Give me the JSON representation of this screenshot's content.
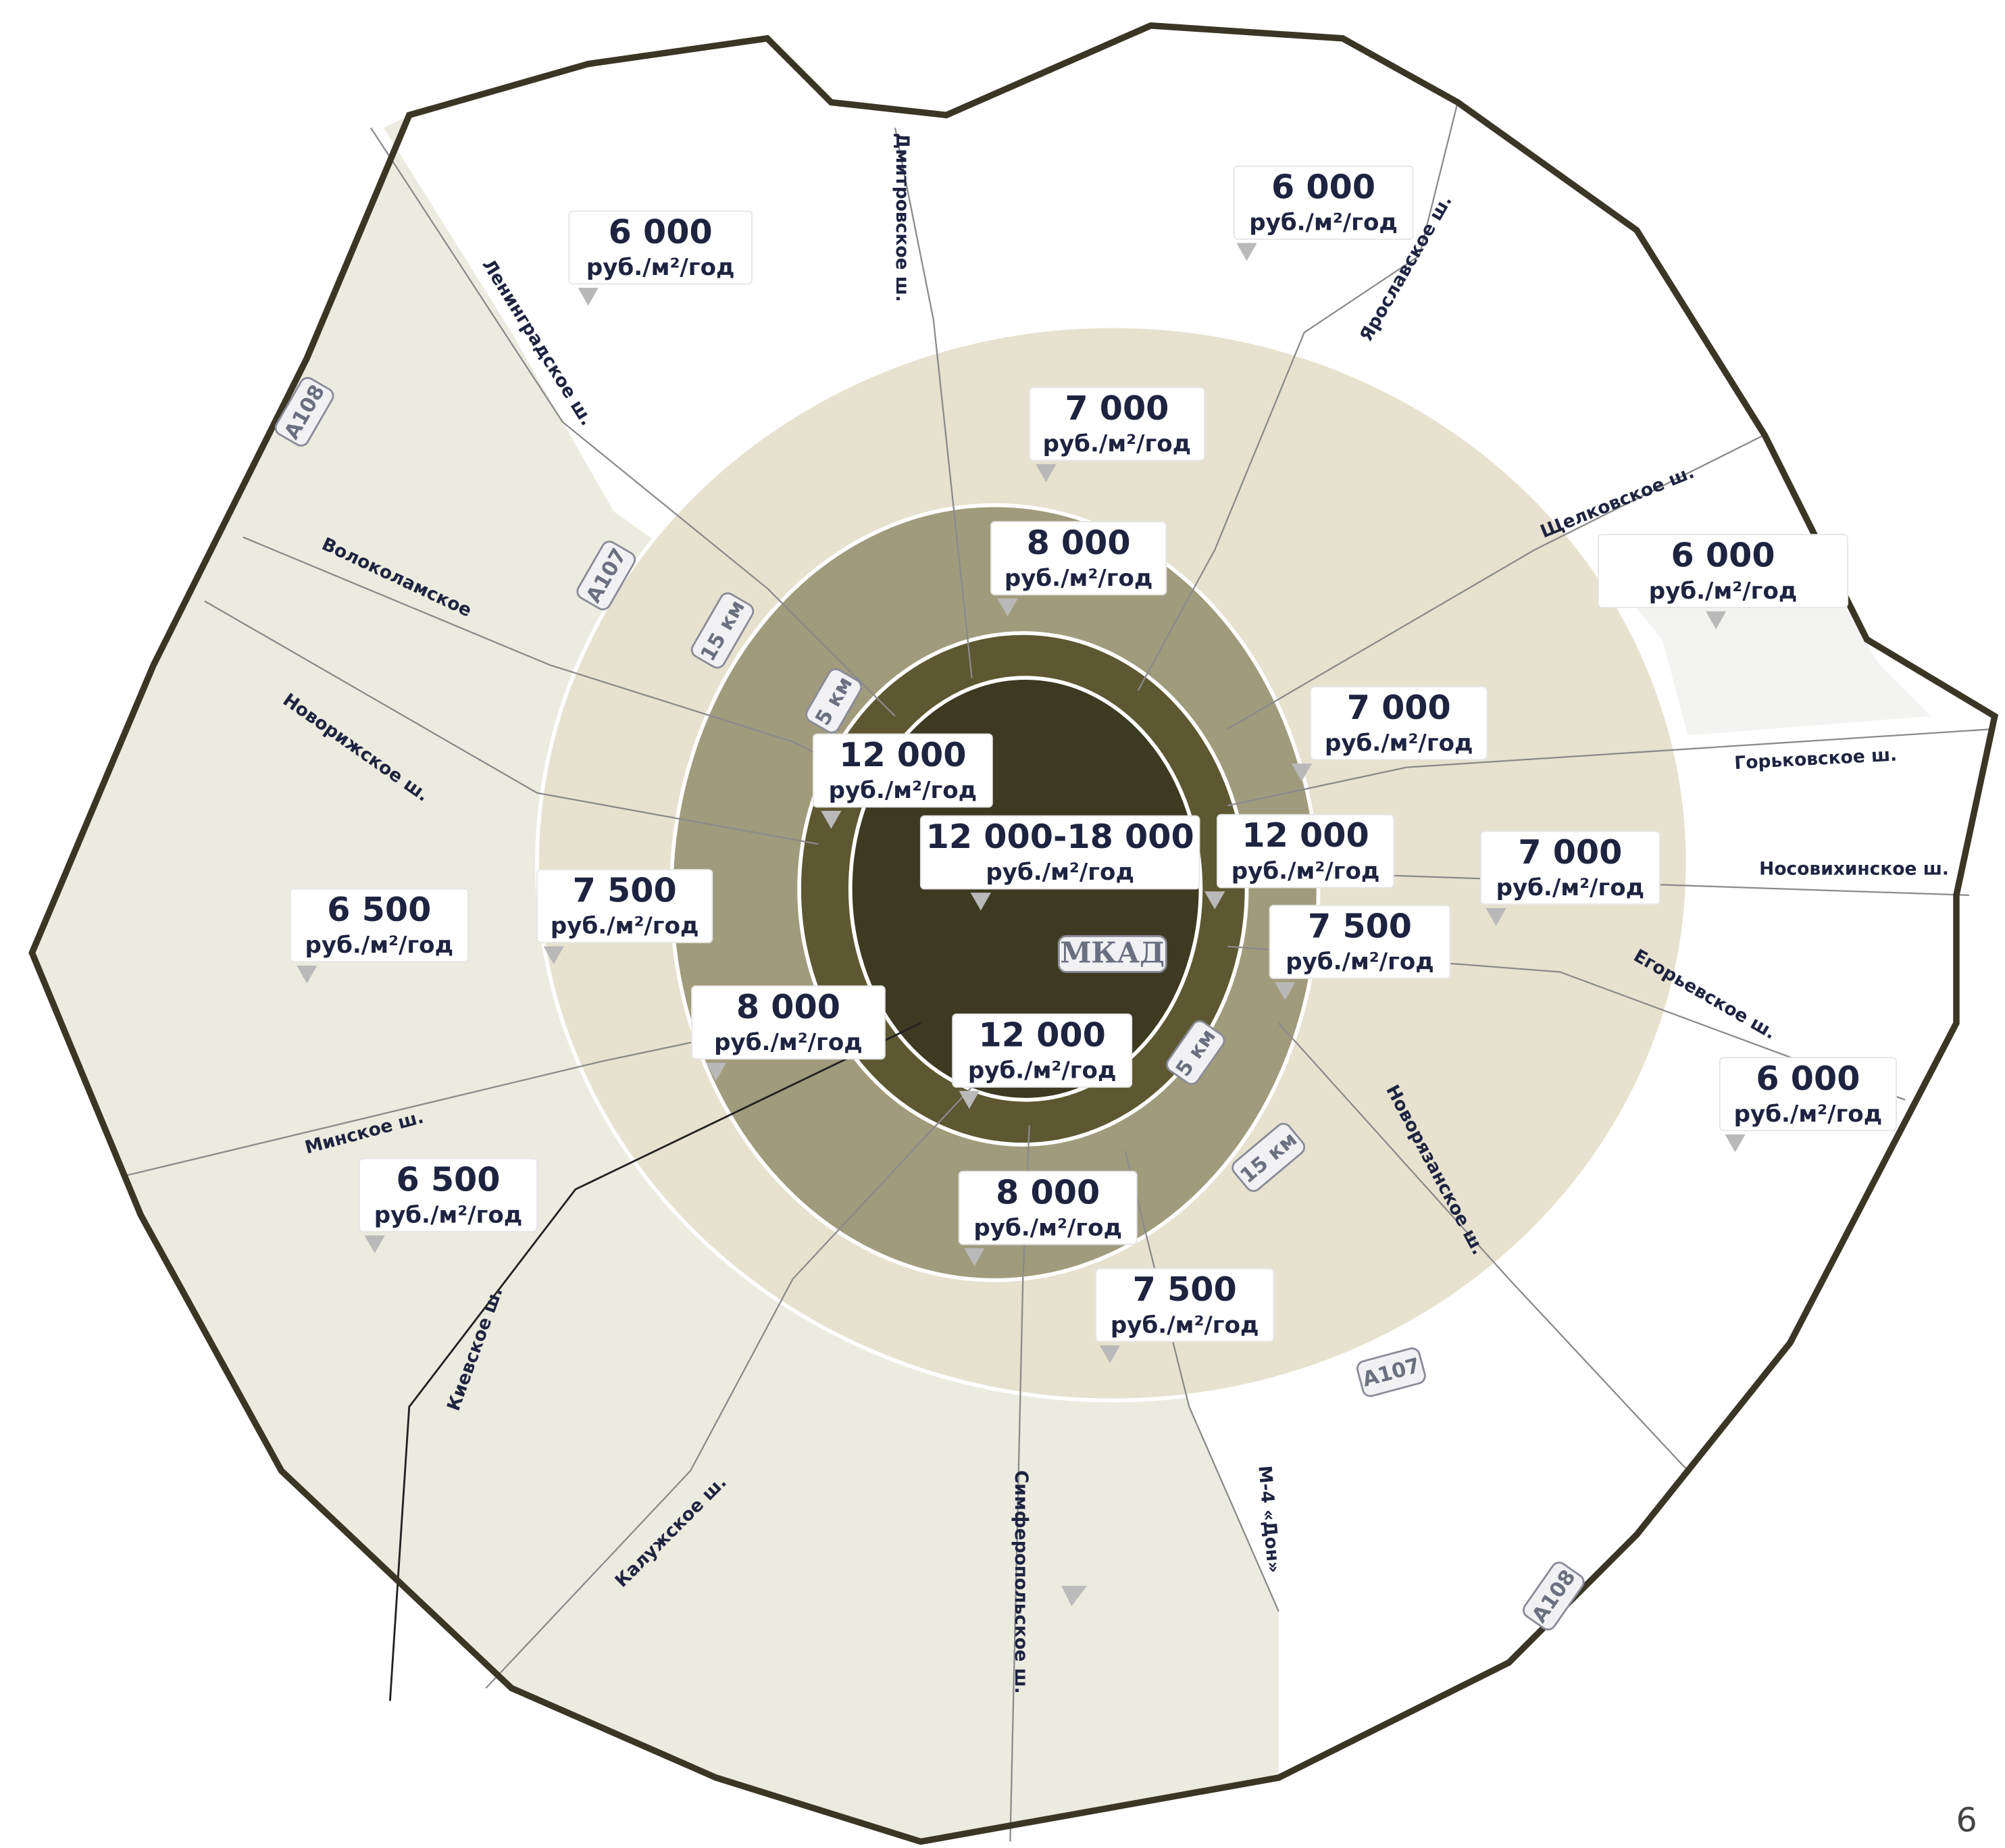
{
  "price_labels": [
    {
      "price": "6 000",
      "unit": "руб./м²/год"
    },
    {
      "price": "6 000",
      "unit": "руб./м²/год"
    },
    {
      "price": "7 000",
      "unit": "руб./м²/год"
    },
    {
      "price": "8 000",
      "unit": "руб./м²/год"
    },
    {
      "price": "6 000",
      "unit": "руб./м²/год"
    },
    {
      "price": "7 000",
      "unit": "руб./м²/год"
    },
    {
      "price": "12 000",
      "unit": "руб./м²/год"
    },
    {
      "price": "12 000-18 000",
      "unit": "руб./м²/год"
    },
    {
      "price": "12 000",
      "unit": "руб./м²/год"
    },
    {
      "price": "7 000",
      "unit": "руб./м²/год"
    },
    {
      "price": "6 500",
      "unit": "руб./м²/год"
    },
    {
      "price": "7 500",
      "unit": "руб./м²/год"
    },
    {
      "price": "7 500",
      "unit": "руб./м²/год"
    },
    {
      "price": "8 000",
      "unit": "руб./м²/год"
    },
    {
      "price": "12 000",
      "unit": "руб./м²/год"
    },
    {
      "price": "6 000",
      "unit": "руб./м²/год"
    },
    {
      "price": "6 500",
      "unit": "руб./м²/год"
    },
    {
      "price": "8 000",
      "unit": "руб./м²/год"
    },
    {
      "price": "7 500",
      "unit": "руб./м²/год"
    }
  ],
  "road_labels": [
    "Дмитровское ш.",
    "Ленинградское ш.",
    "Ярославское ш.",
    "Волоколамское",
    "Щелковское ш.",
    "Новорижское ш.",
    "Горьковское ш.",
    "Носовихинское ш.",
    "Егорьевское ш.",
    "Минское ш.",
    "Новорязанское ш.",
    "Киевское ш.",
    "Калужское ш.",
    "Симферопольское ш.",
    "М-4 «Дон»"
  ],
  "shields": [
    "А108",
    "А107",
    "15 км",
    "5 км",
    "МКАД",
    "5 км",
    "15 км",
    "А107",
    "А108"
  ],
  "page_number": "6"
}
